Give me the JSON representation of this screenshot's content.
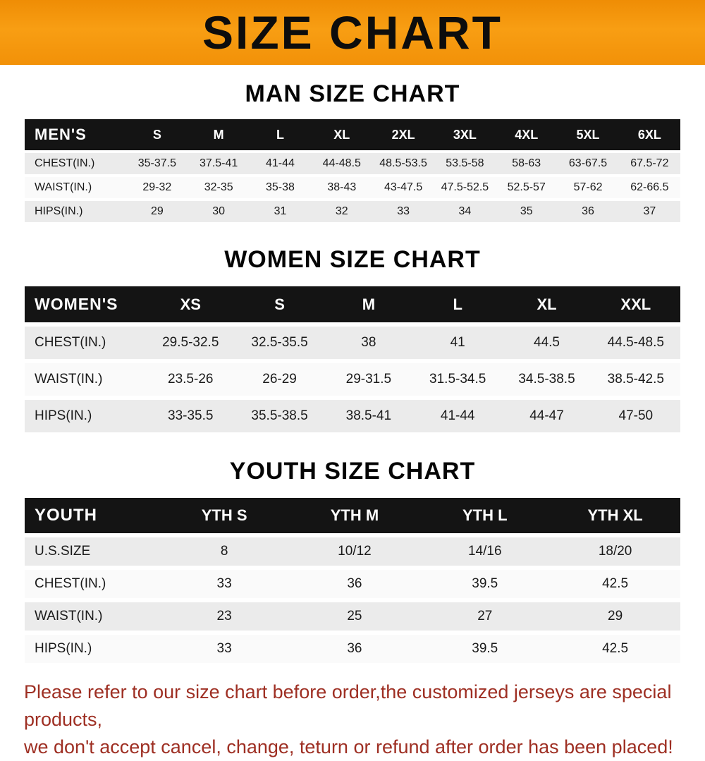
{
  "banner": {
    "title": "SIZE CHART"
  },
  "colors": {
    "banner_orange": "#f89e13",
    "banner_orange_dark": "#ef8d05",
    "table_header_black": "#141414",
    "row_gray": "#ebebeb",
    "row_white": "#fafafa",
    "note_red": "#9e2f23"
  },
  "chart_data": [
    {
      "type": "table",
      "title": "MAN SIZE CHART",
      "columns": [
        "MEN'S",
        "S",
        "M",
        "L",
        "XL",
        "2XL",
        "3XL",
        "4XL",
        "5XL",
        "6XL"
      ],
      "rows": [
        [
          "CHEST(IN.)",
          "35-37.5",
          "37.5-41",
          "41-44",
          "44-48.5",
          "48.5-53.5",
          "53.5-58",
          "58-63",
          "63-67.5",
          "67.5-72"
        ],
        [
          "WAIST(IN.)",
          "29-32",
          "32-35",
          "35-38",
          "38-43",
          "43-47.5",
          "47.5-52.5",
          "52.5-57",
          "57-62",
          "62-66.5"
        ],
        [
          "HIPS(IN.)",
          "29",
          "30",
          "31",
          "32",
          "33",
          "34",
          "35",
          "36",
          "37"
        ]
      ]
    },
    {
      "type": "table",
      "title": "WOMEN SIZE CHART",
      "columns": [
        "WOMEN'S",
        "XS",
        "S",
        "M",
        "L",
        "XL",
        "XXL"
      ],
      "rows": [
        [
          "CHEST(IN.)",
          "29.5-32.5",
          "32.5-35.5",
          "38",
          "41",
          "44.5",
          "44.5-48.5"
        ],
        [
          "WAIST(IN.)",
          "23.5-26",
          "26-29",
          "29-31.5",
          "31.5-34.5",
          "34.5-38.5",
          "38.5-42.5"
        ],
        [
          "HIPS(IN.)",
          "33-35.5",
          "35.5-38.5",
          "38.5-41",
          "41-44",
          "44-47",
          "47-50"
        ]
      ]
    },
    {
      "type": "table",
      "title": "YOUTH SIZE CHART",
      "columns": [
        "YOUTH",
        "YTH S",
        "YTH M",
        "YTH L",
        "YTH XL"
      ],
      "rows": [
        [
          "U.S.SIZE",
          "8",
          "10/12",
          "14/16",
          "18/20"
        ],
        [
          "CHEST(IN.)",
          "33",
          "36",
          "39.5",
          "42.5"
        ],
        [
          "WAIST(IN.)",
          "23",
          "25",
          "27",
          "29"
        ],
        [
          "HIPS(IN.)",
          "33",
          "36",
          "39.5",
          "42.5"
        ]
      ]
    }
  ],
  "note": {
    "lines": [
      "Please refer to our size chart before order,the customized jerseys are special products,",
      "we don't accept cancel, change, teturn or refund after order has been placed!"
    ]
  }
}
